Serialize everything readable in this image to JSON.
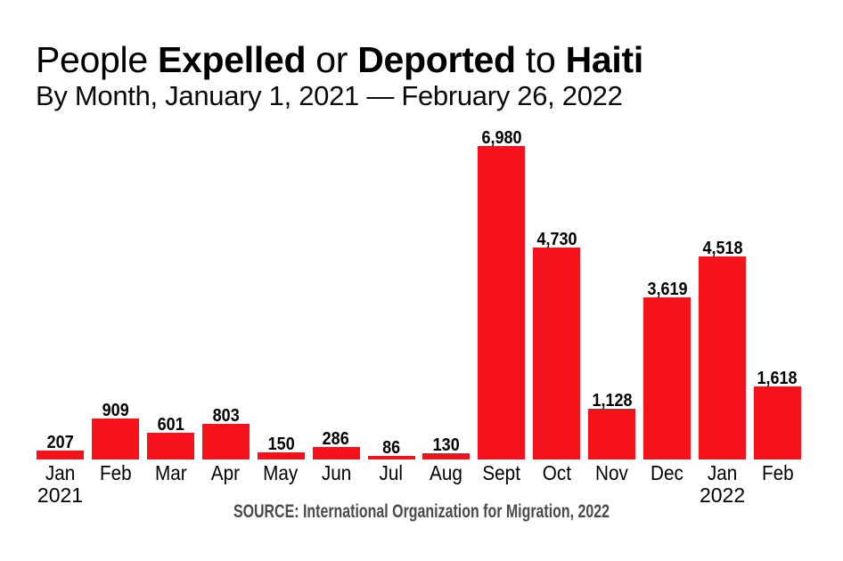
{
  "title": {
    "part1": "People ",
    "bold1": "Expelled",
    "part2": " or ",
    "bold2": "Deported",
    "part3": " to ",
    "bold3": "Haiti"
  },
  "subtitle": "By Month, January 1, 2021 — February 26, 2022",
  "source": "SOURCE: International Organization for Migration, 2022",
  "colors": {
    "bar": "#f5121b",
    "text": "#000000",
    "source_text": "#4a4a4a"
  },
  "chart_data": {
    "type": "bar",
    "title": "People Expelled or Deported to Haiti",
    "subtitle": "By Month, January 1, 2021 — February 26, 2022",
    "categories": [
      "Jan",
      "Feb",
      "Mar",
      "Apr",
      "May",
      "Jun",
      "Jul",
      "Aug",
      "Sept",
      "Oct",
      "Nov",
      "Dec",
      "Jan",
      "Feb"
    ],
    "year_labels": [
      "2021",
      "",
      "",
      "",
      "",
      "",
      "",
      "",
      "",
      "",
      "",
      "",
      "2022",
      ""
    ],
    "values": [
      207,
      909,
      601,
      803,
      150,
      286,
      86,
      130,
      6980,
      4730,
      1128,
      3619,
      4518,
      1618
    ],
    "value_labels": [
      "207",
      "909",
      "601",
      "803",
      "150",
      "286",
      "86",
      "130",
      "6,980",
      "4,730",
      "1,128",
      "3,619",
      "4,518",
      "1,618"
    ],
    "xlabel": "",
    "ylabel": "",
    "ylim": [
      0,
      6980
    ],
    "grid": false,
    "legend": false,
    "source": "SOURCE: International Organization for Migration, 2022"
  }
}
